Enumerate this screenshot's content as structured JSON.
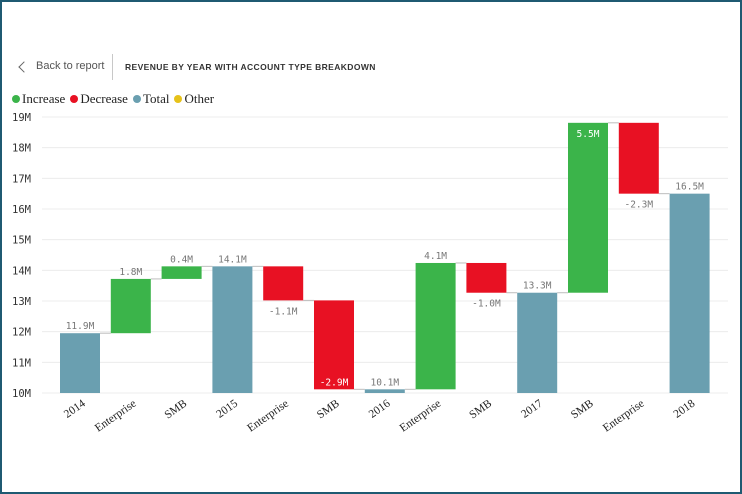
{
  "header": {
    "back_label": "Back to report",
    "title": "REVENUE BY YEAR WITH ACCOUNT TYPE BREAKDOWN"
  },
  "legend": [
    {
      "label": "Increase",
      "color": "#3bb44a"
    },
    {
      "label": "Decrease",
      "color": "#e81123"
    },
    {
      "label": "Total",
      "color": "#6a9fb0"
    },
    {
      "label": "Other",
      "color": "#e6c21a"
    }
  ],
  "chart_data": {
    "type": "waterfall",
    "title": "REVENUE BY YEAR WITH ACCOUNT TYPE BREAKDOWN",
    "xlabel": "",
    "ylabel": "",
    "ylim": [
      10,
      19
    ],
    "yticks": [
      "10M",
      "11M",
      "12M",
      "13M",
      "14M",
      "15M",
      "16M",
      "17M",
      "18M",
      "19M"
    ],
    "grid": true,
    "legend_position": "top-left",
    "unit": "M",
    "colors": {
      "increase": "#3bb44a",
      "decrease": "#e81123",
      "total": "#6a9fb0",
      "other": "#e6c21a"
    },
    "bars": [
      {
        "category": "2014",
        "kind": "total",
        "start": 10,
        "end": 11.95,
        "label": "11.9M"
      },
      {
        "category": "Enterprise",
        "kind": "increase",
        "start": 11.95,
        "end": 13.72,
        "label": "1.8M"
      },
      {
        "category": "SMB",
        "kind": "increase",
        "start": 13.72,
        "end": 14.13,
        "label": "0.4M"
      },
      {
        "category": "2015",
        "kind": "total",
        "start": 10,
        "end": 14.13,
        "label": "14.1M"
      },
      {
        "category": "Enterprise",
        "kind": "decrease",
        "start": 14.13,
        "end": 13.02,
        "label": "-1.1M"
      },
      {
        "category": "SMB",
        "kind": "decrease",
        "start": 13.02,
        "end": 10.12,
        "label": "-2.9M"
      },
      {
        "category": "2016",
        "kind": "total",
        "start": 10,
        "end": 10.12,
        "label": "10.1M"
      },
      {
        "category": "Enterprise",
        "kind": "increase",
        "start": 10.12,
        "end": 14.24,
        "label": "4.1M"
      },
      {
        "category": "SMB",
        "kind": "decrease",
        "start": 14.24,
        "end": 13.27,
        "label": "-1.0M"
      },
      {
        "category": "2017",
        "kind": "total",
        "start": 10,
        "end": 13.27,
        "label": "13.3M"
      },
      {
        "category": "SMB",
        "kind": "increase",
        "start": 13.27,
        "end": 18.81,
        "label": "5.5M"
      },
      {
        "category": "Enterprise",
        "kind": "decrease",
        "start": 18.81,
        "end": 16.5,
        "label": "-2.3M"
      },
      {
        "category": "2018",
        "kind": "total",
        "start": 10,
        "end": 16.5,
        "label": "16.5M"
      }
    ]
  }
}
